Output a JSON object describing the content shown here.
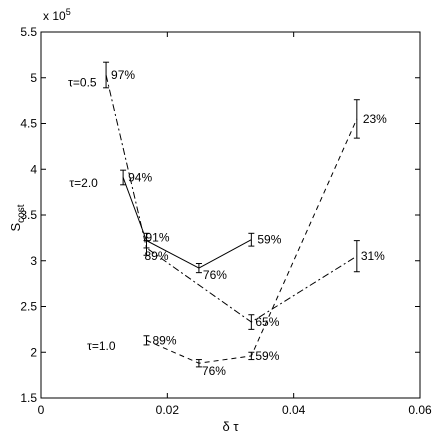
{
  "chart_data": {
    "type": "line",
    "title": "",
    "xlabel": "δ τ",
    "ylabel": "S",
    "ylabel_subscript": "cost",
    "y_exponent_label": "x 10",
    "y_exponent_power": "5",
    "xlim": [
      0,
      0.06
    ],
    "ylim": [
      1.5,
      5.5
    ],
    "x_ticks": [
      0,
      0.02,
      0.04,
      0.06
    ],
    "x_tick_labels": [
      "0",
      "0.02",
      "0.04",
      "0.06"
    ],
    "y_ticks": [
      1.5,
      2,
      2.5,
      3,
      3.5,
      4,
      4.5,
      5,
      5.5
    ],
    "y_tick_labels": [
      "1.5",
      "2",
      "2.5",
      "3",
      "3.5",
      "4",
      "4.5",
      "5",
      "5.5"
    ],
    "grid": false,
    "series": [
      {
        "label": "τ=0.5",
        "line_style": "dash-dot",
        "points": [
          {
            "x": 0.0103,
            "y": 5.03,
            "err": 0.14,
            "label": "97%"
          },
          {
            "x": 0.0167,
            "y": 3.14,
            "err": 0.08,
            "label": "89%"
          },
          {
            "x": 0.0333,
            "y": 2.33,
            "err": 0.08,
            "label": "65%"
          },
          {
            "x": 0.05,
            "y": 3.05,
            "err": 0.17,
            "label": "31%"
          }
        ]
      },
      {
        "label": "τ=2.0",
        "line_style": "solid",
        "points": [
          {
            "x": 0.013,
            "y": 3.91,
            "err": 0.08,
            "label": "94%"
          },
          {
            "x": 0.0167,
            "y": 3.22,
            "err": 0.08,
            "label": "91%"
          },
          {
            "x": 0.025,
            "y": 2.92,
            "err": 0.05,
            "label": "76%"
          },
          {
            "x": 0.0333,
            "y": 3.23,
            "err": 0.07,
            "label": "59%"
          }
        ]
      },
      {
        "label": "τ=1.0",
        "line_style": "dashed",
        "points": [
          {
            "x": 0.0167,
            "y": 2.13,
            "err": 0.05,
            "label": "89%"
          },
          {
            "x": 0.025,
            "y": 1.88,
            "err": 0.04,
            "label": "76%"
          },
          {
            "x": 0.0333,
            "y": 1.96,
            "err": 0.04,
            "label": "59%"
          },
          {
            "x": 0.05,
            "y": 4.55,
            "err": 0.21,
            "label": "23%"
          }
        ]
      }
    ]
  }
}
